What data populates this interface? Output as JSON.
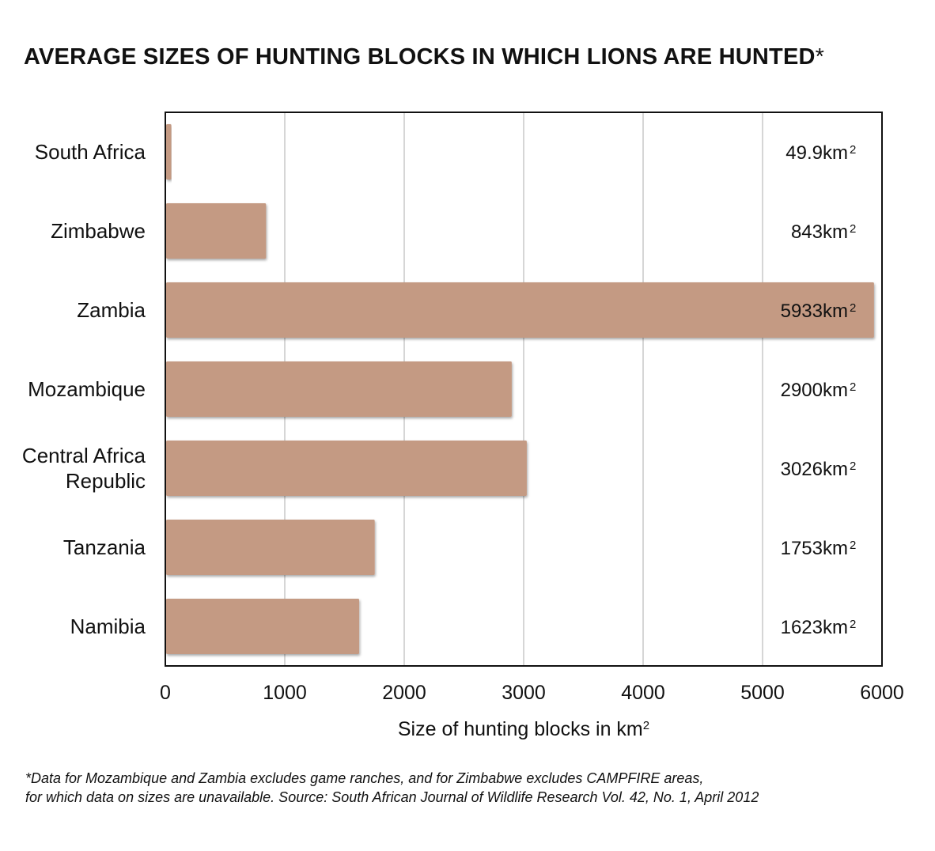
{
  "title": "AVERAGE SIZES OF HUNTING BLOCKS IN WHICH LIONS ARE HUNTED",
  "title_mark": "*",
  "footnote": [
    "*Data for Mozambique and Zambia excludes game ranches, and for Zimbabwe excludes CAMPFIRE areas,",
    " for which data on sizes are unavailable. Source: South African Journal of Wildlife Research Vol. 42, No. 1,  April 2012"
  ],
  "colors": {
    "bar": "#c49a83",
    "grid": "#c8c8c8",
    "frame": "#111111"
  },
  "chart_data": {
    "type": "bar",
    "orientation": "horizontal",
    "categories": [
      "South Africa",
      "Zimbabwe",
      "Zambia",
      "Mozambique",
      "Central Africa Republic",
      "Tanzania",
      "Namibia"
    ],
    "category_lines": [
      [
        "South Africa"
      ],
      [
        "Zimbabwe"
      ],
      [
        "Zambia"
      ],
      [
        "Mozambique"
      ],
      [
        "Central Africa",
        "Republic"
      ],
      [
        "Tanzania"
      ],
      [
        "Namibia"
      ]
    ],
    "values": [
      49.9,
      843,
      5933,
      2900,
      3026,
      1753,
      1623
    ],
    "value_labels": [
      "49.9km",
      "843km",
      "5933km",
      "2900km",
      "3026km",
      "1753km",
      "1623km"
    ],
    "value_unit_superscript": "2",
    "xlabel": "Size of hunting blocks in km",
    "xlabel_superscript": "2",
    "xlim": [
      0,
      6000
    ],
    "xticks": [
      0,
      1000,
      2000,
      3000,
      4000,
      5000,
      6000
    ],
    "grid": true,
    "legend": "none"
  }
}
